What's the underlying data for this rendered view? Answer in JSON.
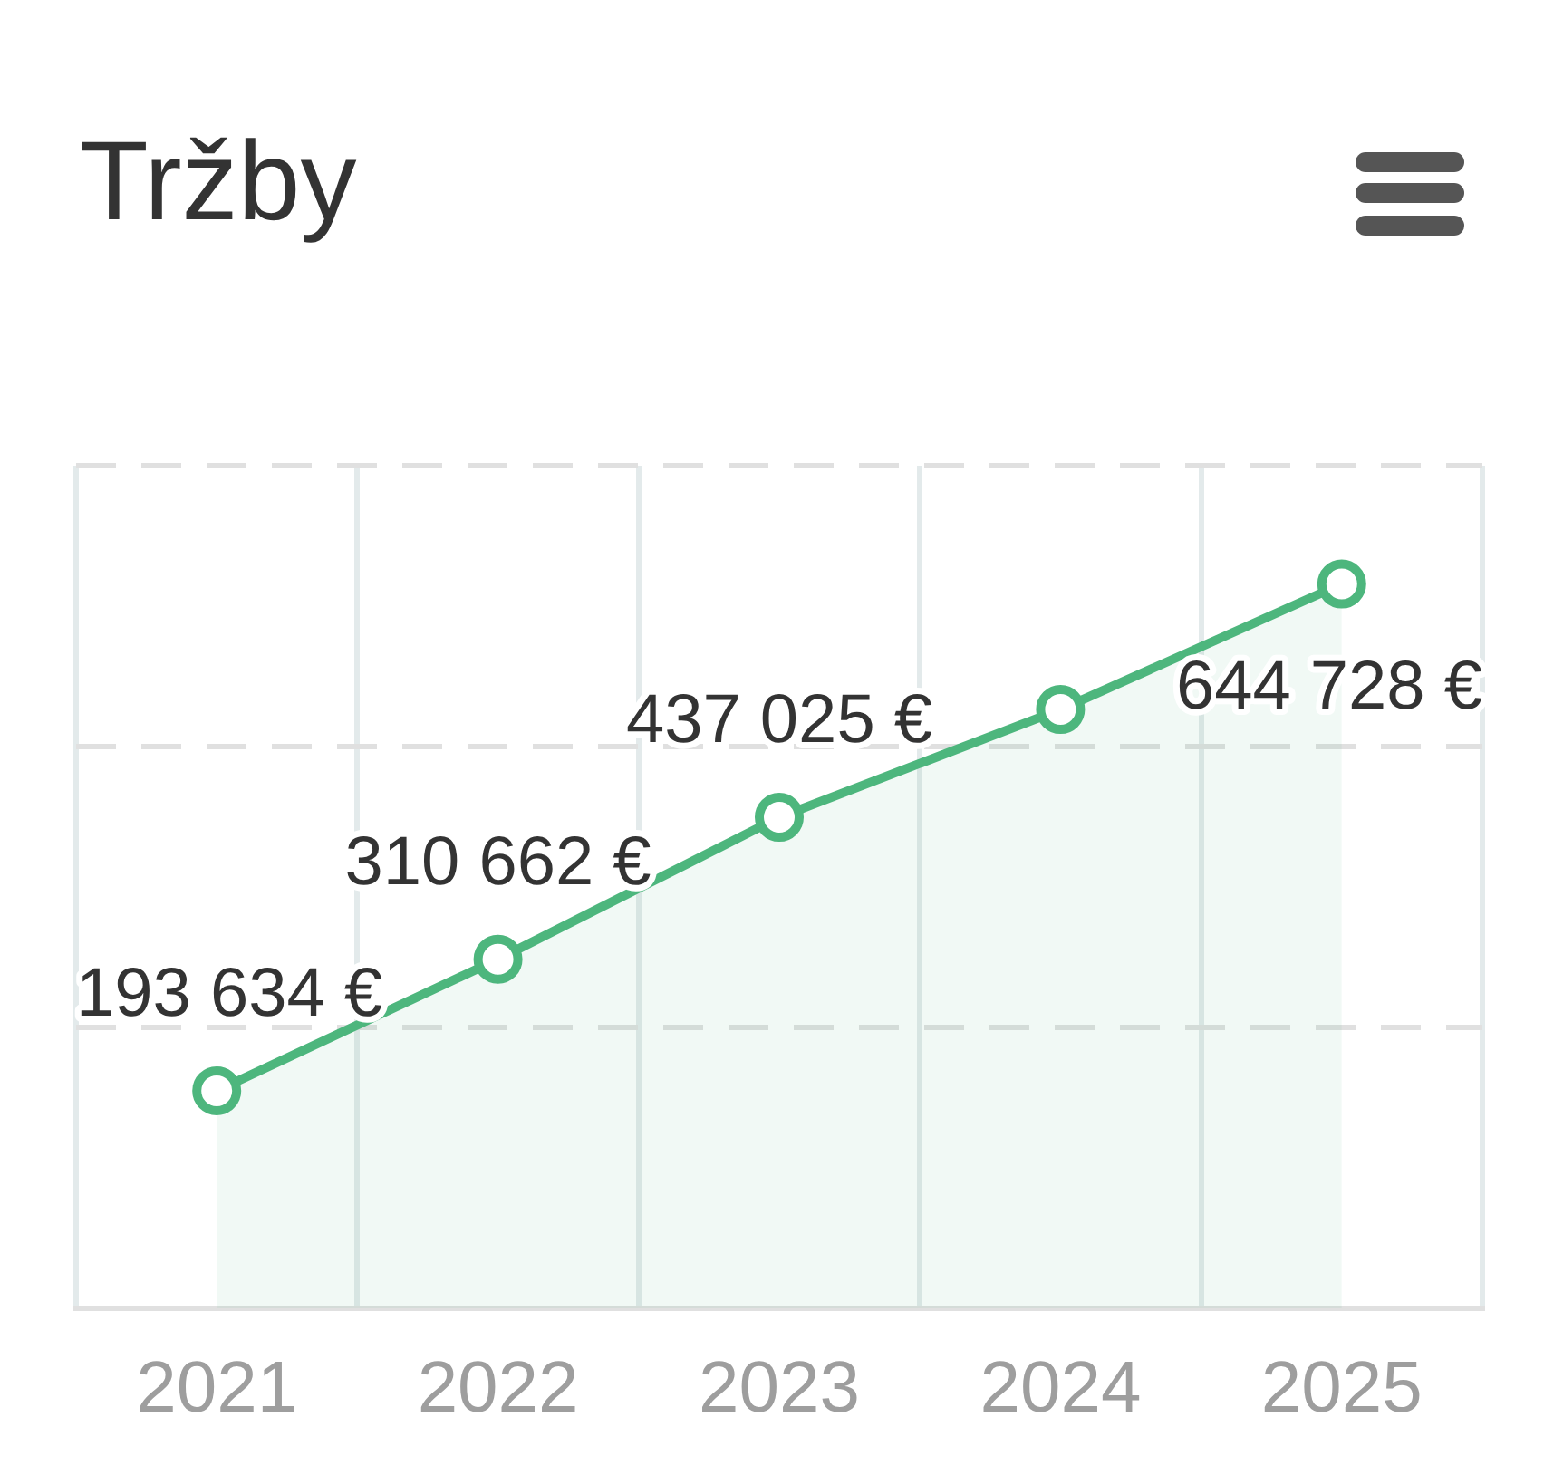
{
  "chart_data": {
    "type": "area",
    "title": "Tržby",
    "categories": [
      "2021",
      "2022",
      "2023",
      "2024",
      "2025"
    ],
    "values": [
      193634,
      310662,
      437025,
      533000,
      644728
    ],
    "color": "#4db67d",
    "value_labels": [
      "193 634 €",
      "310 662 €",
      "437 025 €",
      null,
      "644 728 €"
    ],
    "ylim": [
      0,
      750000
    ],
    "yticks": [
      {
        "value": 0,
        "label": null
      },
      {
        "value": 250000,
        "label": null
      },
      {
        "value": 500000,
        "label": null
      },
      {
        "value": 750000,
        "label": null
      }
    ],
    "tick_labels": "x",
    "grid": true,
    "marker": "circle",
    "legend": false
  }
}
